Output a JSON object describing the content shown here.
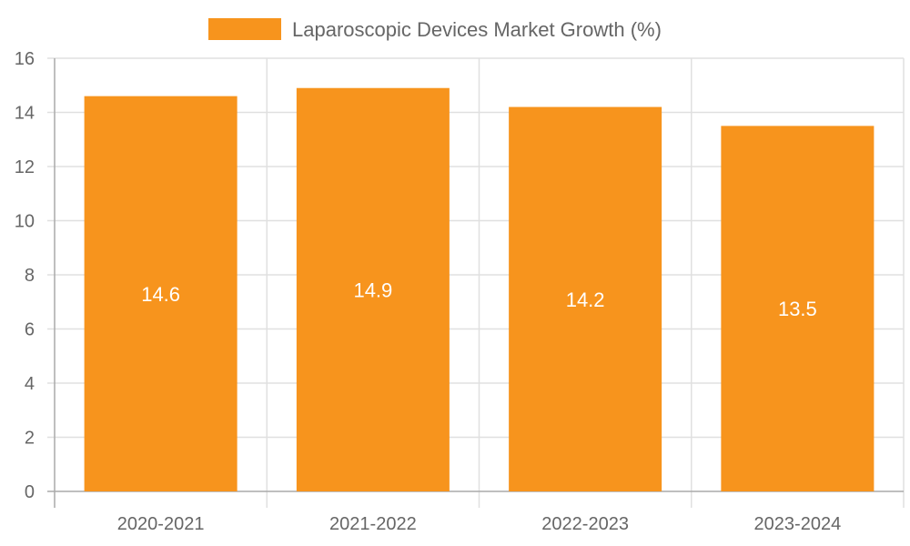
{
  "chart_data": {
    "type": "bar",
    "title": "",
    "categories": [
      "2020-2021",
      "2021-2022",
      "2022-2023",
      "2023-2024"
    ],
    "series": [
      {
        "name": "Laparoscopic Devices Market Growth (%)",
        "values": [
          14.6,
          14.9,
          14.2,
          13.5
        ],
        "color": "#f7941d"
      }
    ],
    "data_labels": [
      "14.6",
      "14.9",
      "14.2",
      "13.5"
    ],
    "xlabel": "",
    "ylabel": "",
    "ylim": [
      0,
      16
    ],
    "yticks": [
      "0",
      "2",
      "4",
      "6",
      "8",
      "10",
      "12",
      "14",
      "16"
    ],
    "grid": true,
    "legend_position": "top-center"
  }
}
